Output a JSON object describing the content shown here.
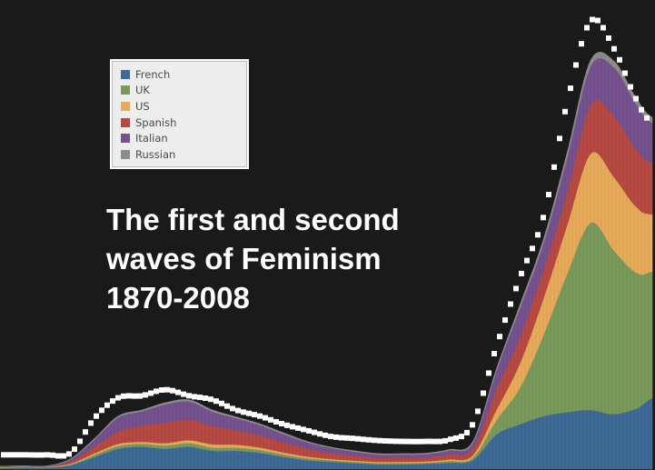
{
  "chart_data": {
    "type": "area",
    "stacked": true,
    "title_lines": [
      "The first and second",
      "waves of Feminism",
      "1870-2008"
    ],
    "xlim": [
      1870,
      2008
    ],
    "x": [
      1870,
      1875,
      1880,
      1885,
      1890,
      1895,
      1900,
      1905,
      1910,
      1915,
      1920,
      1925,
      1930,
      1935,
      1940,
      1945,
      1950,
      1955,
      1960,
      1965,
      1970,
      1975,
      1980,
      1985,
      1990,
      1995,
      2000,
      2005,
      2008
    ],
    "series": [
      {
        "name": "French",
        "color": "#3d6a96",
        "values": [
          0.3,
          0.4,
          0.4,
          1.0,
          3.0,
          5.0,
          5.5,
          5.0,
          5.5,
          4.5,
          4.5,
          4.0,
          3.0,
          2.2,
          1.8,
          1.5,
          1.2,
          1.2,
          1.3,
          1.6,
          2.2,
          8.5,
          11.0,
          13.0,
          14.0,
          14.5,
          13.5,
          15.0,
          17.5
        ]
      },
      {
        "name": "UK",
        "color": "#7a9a5c",
        "values": [
          0.1,
          0.1,
          0.1,
          0.2,
          0.5,
          0.7,
          0.7,
          0.8,
          0.9,
          0.8,
          0.8,
          0.7,
          0.6,
          0.5,
          0.4,
          0.3,
          0.3,
          0.3,
          0.3,
          0.4,
          0.6,
          3.5,
          9.0,
          20.0,
          34.0,
          46.0,
          40.0,
          33.0,
          31.0
        ]
      },
      {
        "name": "US",
        "color": "#e8ab59",
        "values": [
          0.1,
          0.1,
          0.1,
          0.2,
          0.4,
          0.5,
          0.5,
          0.6,
          0.7,
          0.8,
          0.7,
          0.6,
          0.5,
          0.4,
          0.3,
          0.3,
          0.3,
          0.3,
          0.3,
          0.4,
          0.6,
          2.5,
          6.0,
          9.0,
          12.0,
          17.0,
          18.0,
          16.0,
          14.0
        ]
      },
      {
        "name": "Spanish",
        "color": "#b64a42",
        "values": [
          0.1,
          0.1,
          0.1,
          0.5,
          1.6,
          3.0,
          4.0,
          5.0,
          5.0,
          4.5,
          3.5,
          3.0,
          2.5,
          2.0,
          1.5,
          1.2,
          1.0,
          1.0,
          1.0,
          1.2,
          1.6,
          5.0,
          6.5,
          7.0,
          8.0,
          12.0,
          15.0,
          14.0,
          12.5
        ]
      },
      {
        "name": "Italian",
        "color": "#75528f",
        "values": [
          0.1,
          0.1,
          0.1,
          0.6,
          1.8,
          3.5,
          3.5,
          4.5,
          4.5,
          3.5,
          3.0,
          2.5,
          2.0,
          1.5,
          1.2,
          1.0,
          0.8,
          0.8,
          0.8,
          1.0,
          1.4,
          4.5,
          7.0,
          6.5,
          8.5,
          9.5,
          12.0,
          11.0,
          10.0
        ]
      },
      {
        "name": "Russian",
        "color": "#8c8c8c",
        "values": [
          0.0,
          0.0,
          0.0,
          0.1,
          0.2,
          0.3,
          0.3,
          0.4,
          0.4,
          0.4,
          0.3,
          0.3,
          0.3,
          0.2,
          0.2,
          0.2,
          0.2,
          0.2,
          0.2,
          0.2,
          0.3,
          0.5,
          0.8,
          1.0,
          1.2,
          1.4,
          1.5,
          1.4,
          1.3
        ]
      }
    ],
    "total_markers": [
      3.5,
      3.5,
      3.5,
      4.0,
      12.5,
      17.5,
      18.0,
      19.5,
      18.0,
      17.0,
      14.5,
      13.0,
      11.0,
      9.5,
      8.0,
      7.5,
      7.0,
      6.8,
      6.8,
      7.2,
      11.0,
      30.0,
      47.0,
      62.0,
      90.0,
      110.0,
      103.0,
      90.0,
      85.0
    ],
    "ylim": [
      0,
      112
    ],
    "marker_color": "#ffffff",
    "background": "#1a1a1a"
  }
}
